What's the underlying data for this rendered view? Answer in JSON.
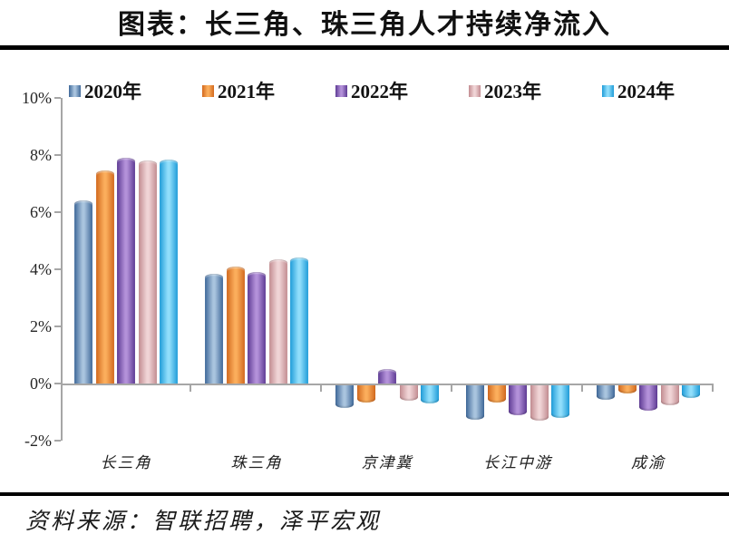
{
  "title": "图表：长三角、珠三角人才持续净流入",
  "source_note": "资料来源：智联招聘，泽平宏观",
  "chart_data": {
    "type": "bar",
    "title": "图表：长三角、珠三角人才持续净流入",
    "categories": [
      "长三角",
      "珠三角",
      "京津冀",
      "长江中游",
      "成渝"
    ],
    "series": [
      {
        "name": "2020年",
        "values": [
          6.4,
          3.85,
          -0.8,
          -1.2,
          -0.5
        ]
      },
      {
        "name": "2021年",
        "values": [
          7.45,
          4.1,
          -0.6,
          -0.6,
          -0.3
        ]
      },
      {
        "name": "2022年",
        "values": [
          7.9,
          3.9,
          0.5,
          -1.05,
          -0.9
        ]
      },
      {
        "name": "2023年",
        "values": [
          7.8,
          4.35,
          -0.55,
          -1.25,
          -0.7
        ]
      },
      {
        "name": "2024年",
        "values": [
          7.85,
          4.4,
          -0.65,
          -1.15,
          -0.45
        ]
      }
    ],
    "ylim": [
      -2,
      10
    ],
    "ytick_values": [
      10,
      8,
      6,
      4,
      2,
      0,
      -2
    ],
    "ytick_labels": [
      "10%",
      "8%",
      "6%",
      "4%",
      "2%",
      "0%",
      "-2%"
    ],
    "xlabel": "",
    "ylabel": "",
    "unit": "%",
    "legend_position": "top",
    "grid": false
  },
  "series_colors": [
    {
      "name": "2020年",
      "dark": "#3F6899",
      "light": "#A9C4DE",
      "main": "#5B84B5"
    },
    {
      "name": "2021年",
      "dark": "#D2691E",
      "light": "#FBAE5C",
      "main": "#F0883B"
    },
    {
      "name": "2022年",
      "dark": "#5E3B94",
      "light": "#B391D9",
      "main": "#8257AE"
    },
    {
      "name": "2023年",
      "dark": "#C28C91",
      "light": "#F0D4D6",
      "main": "#DCABB0"
    },
    {
      "name": "2024年",
      "dark": "#1F9CD8",
      "light": "#90DEFB",
      "main": "#47C2F1"
    }
  ],
  "axis_color": "#a6a6a6"
}
